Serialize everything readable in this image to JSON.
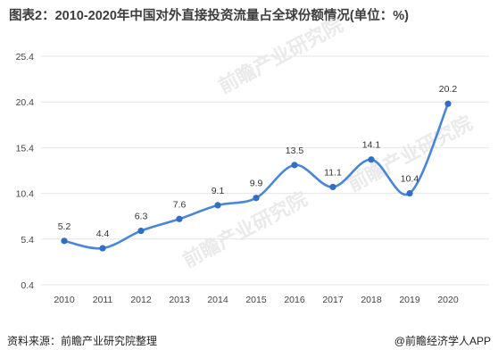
{
  "title": "图表2：2010-2020年中国对外直接投资流量占全球份额情况(单位：%)",
  "source": "资料来源：前瞻产业研究院整理",
  "brand": "@前瞻经济学人APP",
  "watermark": "前瞻产业研究院",
  "colors": {
    "line": "#4a86d8",
    "marker": "#2f6fc4",
    "grid": "#e6e6e6"
  },
  "chart_data": {
    "type": "line",
    "title": "图表2：2010-2020年中国对外直接投资流量占全球份额情况(单位：%)",
    "xlabel": "",
    "ylabel": "",
    "categories": [
      "2010",
      "2011",
      "2012",
      "2013",
      "2014",
      "2015",
      "2016",
      "2017",
      "2018",
      "2019",
      "2020"
    ],
    "series": [
      {
        "values": [
          5.2,
          4.4,
          6.3,
          7.6,
          9.1,
          9.9,
          13.5,
          11.1,
          14.1,
          10.4,
          20.2
        ]
      }
    ],
    "data_labels": [
      "5.2",
      "4.4",
      "6.3",
      "7.6",
      "9.1",
      "9.9",
      "13.5",
      "11.1",
      "14.1",
      "10.4",
      "20.2"
    ],
    "yticks": [
      0.4,
      5.4,
      10.4,
      15.4,
      20.4,
      25.4
    ],
    "ytick_labels": [
      "0.4",
      "5.4",
      "10.4",
      "15.4",
      "20.4",
      "25.4"
    ],
    "ylim": [
      0.4,
      25.4
    ],
    "grid": "horizontal",
    "legend": "none",
    "smooth": true
  }
}
